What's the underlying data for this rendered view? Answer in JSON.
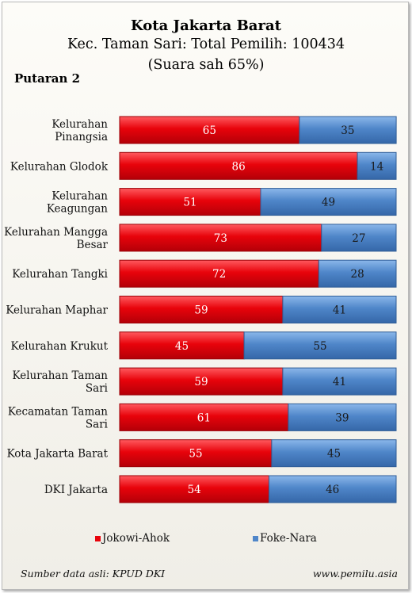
{
  "colors": {
    "jokowi": "#e8030b",
    "foke": "#4f86c9",
    "jokowi_text": "#ffffff",
    "foke_text": "#1a1a1a"
  },
  "header": {
    "title": "Kota Jakarta Barat",
    "subtitle": "Kec. Taman Sari: Total Pemilih: 100434",
    "note": "(Suara sah 65%)",
    "round": "Putaran 2"
  },
  "footer": {
    "source": "Sumber data asli: KPUD DKI",
    "site": "www.pemilu.asia"
  },
  "chart_data": {
    "type": "bar",
    "orientation": "horizontal",
    "stacked": "100%",
    "categories": [
      [
        "Kelurahan",
        "Pinangsia"
      ],
      [
        "Kelurahan Glodok"
      ],
      [
        "Kelurahan",
        "Keagungan"
      ],
      [
        "Kelurahan Mangga",
        "Besar"
      ],
      [
        "Kelurahan Tangki"
      ],
      [
        "Kelurahan Maphar"
      ],
      [
        "Kelurahan Krukut"
      ],
      [
        "Kelurahan Taman",
        "Sari"
      ],
      [
        "Kecamatan Taman",
        "Sari"
      ],
      [
        "Kota Jakarta Barat"
      ],
      [
        "DKI Jakarta"
      ]
    ],
    "series": [
      {
        "name": "Jokowi-Ahok",
        "values": [
          65,
          86,
          51,
          73,
          72,
          59,
          45,
          59,
          61,
          55,
          54
        ]
      },
      {
        "name": "Foke-Nara",
        "values": [
          35,
          14,
          49,
          27,
          28,
          41,
          55,
          41,
          39,
          45,
          46
        ]
      }
    ],
    "xlim": [
      0,
      100
    ],
    "legend": "bottom"
  }
}
